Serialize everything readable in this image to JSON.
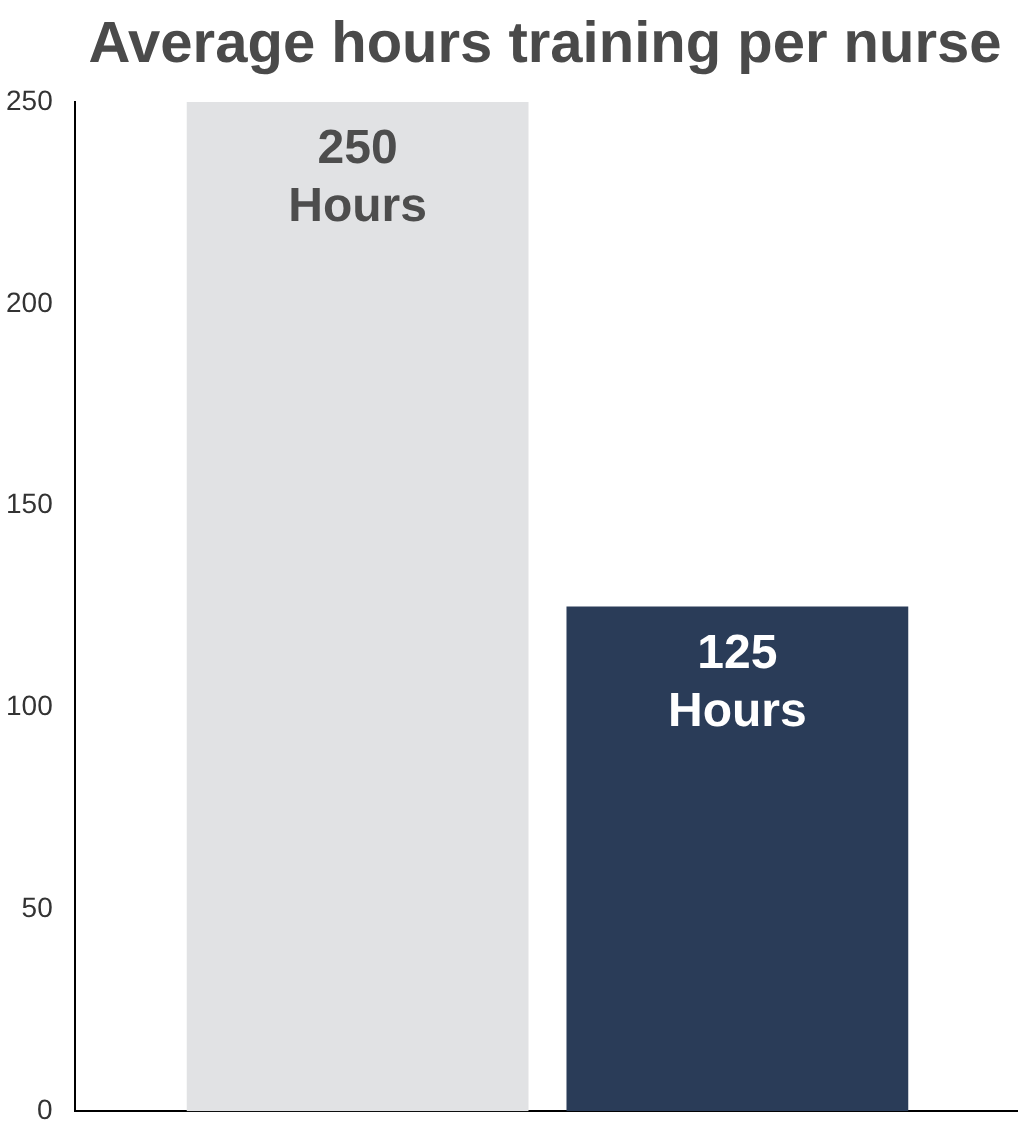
{
  "chart_data": {
    "type": "bar",
    "title": "Average hours training per nurse",
    "categories": [
      null,
      null
    ],
    "values": [
      250,
      125
    ],
    "colors": [
      "#e1e2e4",
      "#2a3c58"
    ],
    "value_labels": [
      "250 Hours",
      "125 Hours"
    ],
    "ylim": [
      0,
      250
    ],
    "yticks": [
      0,
      50,
      100,
      150,
      200,
      250
    ],
    "grid": false,
    "legend": false
  }
}
